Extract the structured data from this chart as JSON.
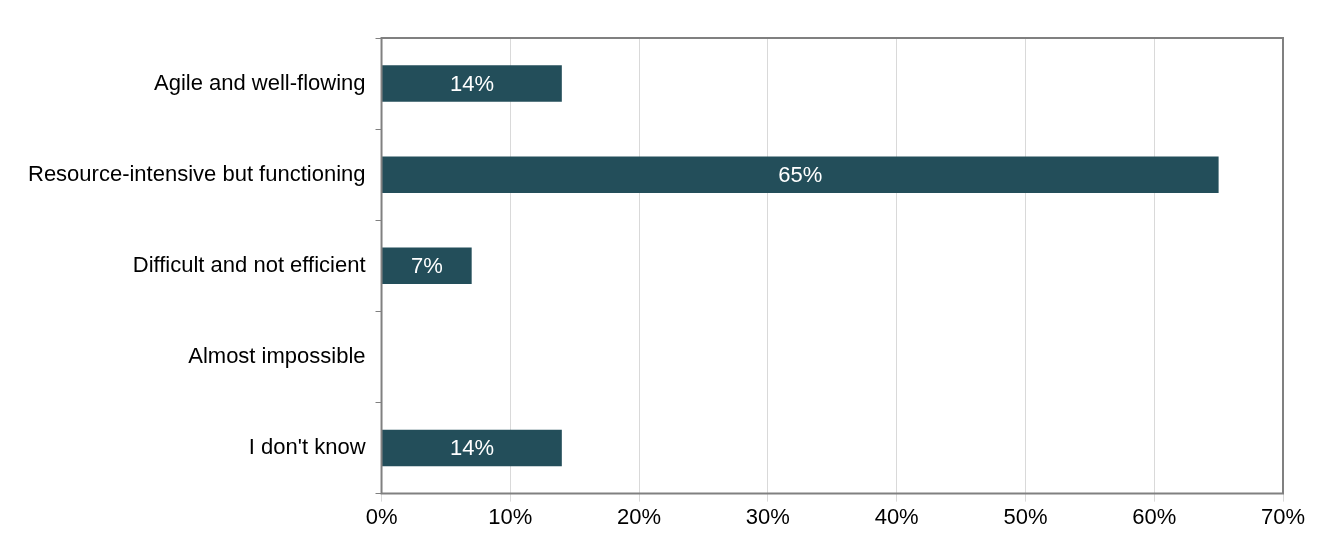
{
  "chart_data": {
    "type": "bar",
    "orientation": "horizontal",
    "categories": [
      "Agile and well-flowing",
      "Resource-intensive but functioning",
      "Difficult and not efficient",
      "Almost impossible",
      "I don't know"
    ],
    "values": [
      14,
      65,
      7,
      0,
      14
    ],
    "value_labels": [
      "14%",
      "65%",
      "7%",
      null,
      "14%"
    ],
    "color": "#234e5a",
    "xlim": [
      0,
      70
    ],
    "xticks": [
      {
        "value": 0,
        "label": "0%"
      },
      {
        "value": 10,
        "label": "10%"
      },
      {
        "value": 20,
        "label": "20%"
      },
      {
        "value": 30,
        "label": "30%"
      },
      {
        "value": 40,
        "label": "40%"
      },
      {
        "value": 50,
        "label": "50%"
      },
      {
        "value": 60,
        "label": "60%"
      },
      {
        "value": 70,
        "label": "70%"
      }
    ],
    "grid": "x",
    "legend": false
  }
}
